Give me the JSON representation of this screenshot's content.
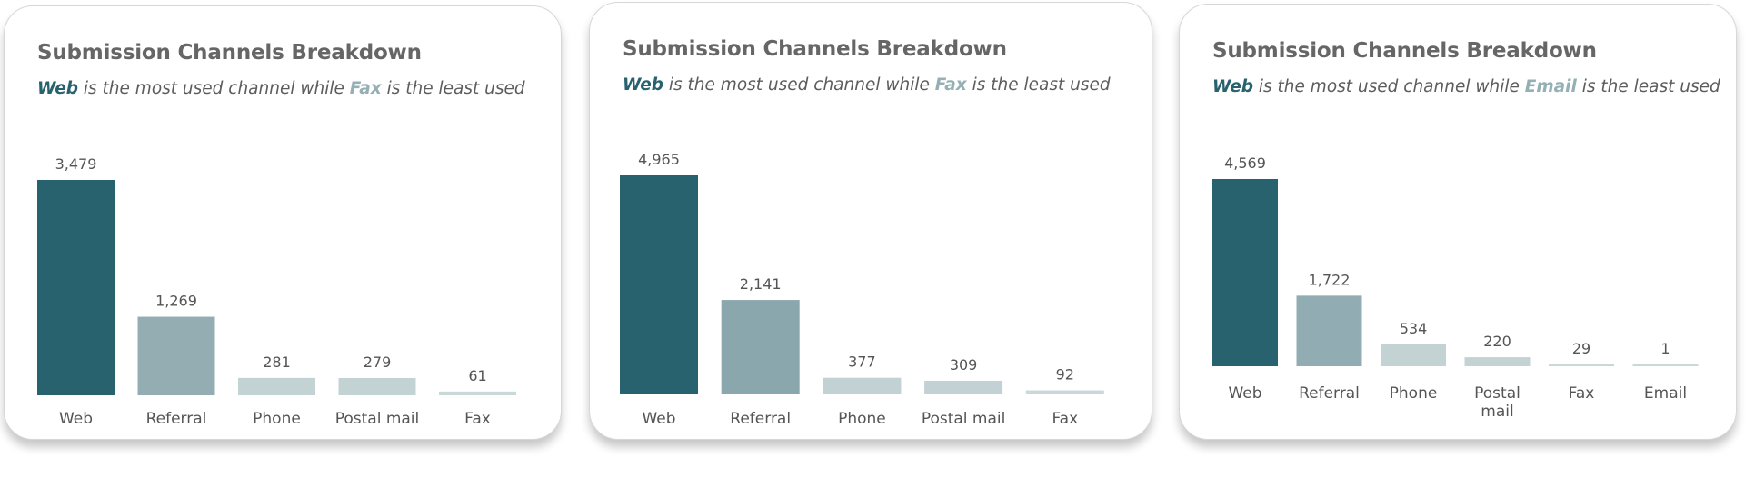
{
  "chart_data": [
    {
      "type": "bar",
      "title": "Submission Channels Breakdown",
      "subtitle": {
        "most_label": "Web",
        "mid_text": " is the most used channel while ",
        "least_label": "Fax",
        "end_text": " is the least used"
      },
      "categories": [
        "Web",
        "Referral",
        "Phone",
        "Postal mail",
        "Fax"
      ],
      "values": [
        3479,
        1269,
        281,
        279,
        61
      ],
      "value_labels": [
        "3,479",
        "1,269",
        "281",
        "279",
        "61"
      ],
      "colors": [
        "#28626f",
        "#94adb2",
        "#c3d3d4",
        "#c3d3d4",
        "#c9d9d8"
      ],
      "ylim": [
        0,
        3479
      ]
    },
    {
      "type": "bar",
      "title": "Submission Channels Breakdown",
      "subtitle": {
        "most_label": "Web",
        "mid_text": " is the most used channel while ",
        "least_label": "Fax",
        "end_text": " is the least used"
      },
      "categories": [
        "Web",
        "Referral",
        "Phone",
        "Postal mail",
        "Fax"
      ],
      "values": [
        4965,
        2141,
        377,
        309,
        92
      ],
      "value_labels": [
        "4,965",
        "2,141",
        "377",
        "309",
        "92"
      ],
      "colors": [
        "#28626f",
        "#89a7ac",
        "#c2d2d4",
        "#c2d2d4",
        "#c9d9d8"
      ],
      "ylim": [
        0,
        4965
      ]
    },
    {
      "type": "bar",
      "title": "Submission Channels Breakdown",
      "subtitle": {
        "most_label": "Web",
        "mid_text": " is the most used channel while ",
        "least_label": "Email",
        "end_text": " is the least used"
      },
      "categories": [
        "Web",
        "Referral",
        "Phone",
        "Postal mail",
        "Fax",
        "Email"
      ],
      "values": [
        4569,
        1722,
        534,
        220,
        29,
        1
      ],
      "value_labels": [
        "4,569",
        "1,722",
        "534",
        "220",
        "29",
        "1"
      ],
      "colors": [
        "#28626f",
        "#91acb2",
        "#c3d3d4",
        "#c3d3d4",
        "#c9d9d8",
        "#c9d9d8"
      ],
      "ylim": [
        0,
        4569
      ]
    }
  ],
  "theme": {
    "most_color": "#28626f",
    "least_color": "#94b0b5",
    "text_color": "#5c5c5c",
    "title_color": "#666666"
  }
}
